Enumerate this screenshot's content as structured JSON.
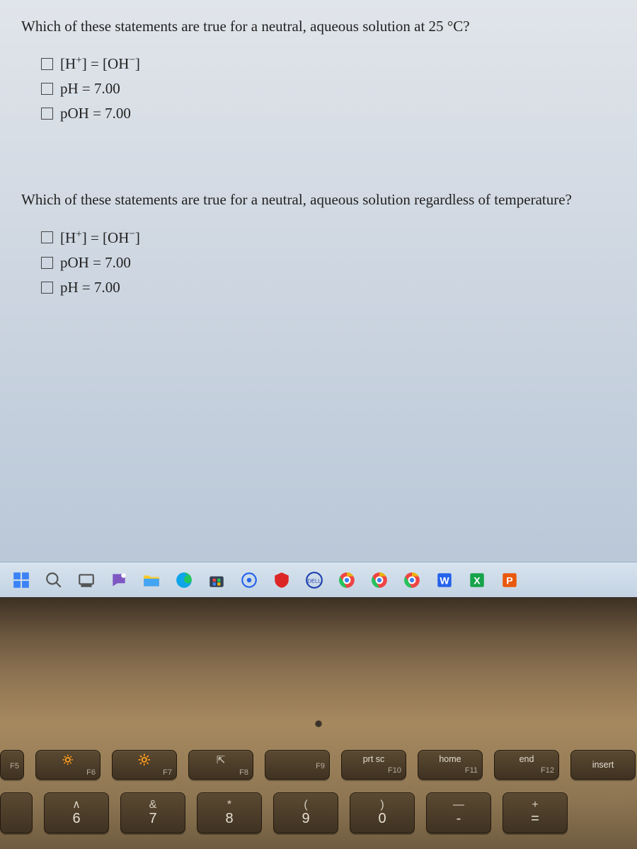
{
  "q1": {
    "text_prefix": "Which of these statements are true for a neutral, aqueous solution at 25 ",
    "text_unit": "°C?",
    "options": [
      {
        "html": "[H<sup>+</sup>] = [OH<sup>−</sup>]"
      },
      {
        "html": "pH = 7.00"
      },
      {
        "html": "pOH = 7.00"
      }
    ]
  },
  "q2": {
    "text": "Which of these statements are true for a neutral, aqueous solution regardless of temperature?",
    "options": [
      {
        "html": "[H<sup>+</sup>] = [OH<sup>−</sup>]"
      },
      {
        "html": "pOH = 7.00"
      },
      {
        "html": "pH = 7.00"
      }
    ]
  },
  "taskbar": {
    "icons": [
      {
        "name": "start-icon"
      },
      {
        "name": "search-icon"
      },
      {
        "name": "task-view-icon"
      },
      {
        "name": "chat-icon"
      },
      {
        "name": "file-explorer-icon"
      },
      {
        "name": "edge-icon"
      },
      {
        "name": "ms-store-icon"
      },
      {
        "name": "settings-icon"
      },
      {
        "name": "mcafee-icon"
      },
      {
        "name": "dell-icon"
      },
      {
        "name": "chrome1-icon"
      },
      {
        "name": "chrome2-icon"
      },
      {
        "name": "chrome3-icon"
      },
      {
        "name": "word-icon"
      },
      {
        "name": "excel-icon"
      },
      {
        "name": "powerpoint-icon"
      }
    ]
  },
  "keyboard": {
    "fn_row": [
      {
        "top": "",
        "bottom": "F5",
        "icon": "",
        "half": true
      },
      {
        "top": "",
        "bottom": "F6",
        "icon": "🔅"
      },
      {
        "top": "",
        "bottom": "F7",
        "icon": "🔆"
      },
      {
        "top": "",
        "bottom": "F8",
        "icon": "⇱"
      },
      {
        "top": "",
        "bottom": "F9",
        "icon": ""
      },
      {
        "top": "prt sc",
        "bottom": "F10",
        "icon": ""
      },
      {
        "top": "home",
        "bottom": "F11",
        "icon": ""
      },
      {
        "top": "end",
        "bottom": "F12",
        "icon": ""
      },
      {
        "top": "insert",
        "bottom": "",
        "icon": ""
      }
    ],
    "num_row": [
      {
        "sym": "",
        "num": "",
        "half": true
      },
      {
        "sym": "∧",
        "num": "6"
      },
      {
        "sym": "&",
        "num": "7"
      },
      {
        "sym": "*",
        "num": "8"
      },
      {
        "sym": "(",
        "num": "9"
      },
      {
        "sym": ")",
        "num": "0"
      },
      {
        "sym": "—",
        "num": "-"
      },
      {
        "sym": "+",
        "num": "="
      }
    ]
  },
  "colors": {
    "screen_top": "#e1e5ea",
    "screen_bottom": "#b7c6d7",
    "text": "#222222",
    "keyboard_bg": "#8c7252",
    "key_bg": "#443620",
    "key_text": "#d9d4c8"
  }
}
